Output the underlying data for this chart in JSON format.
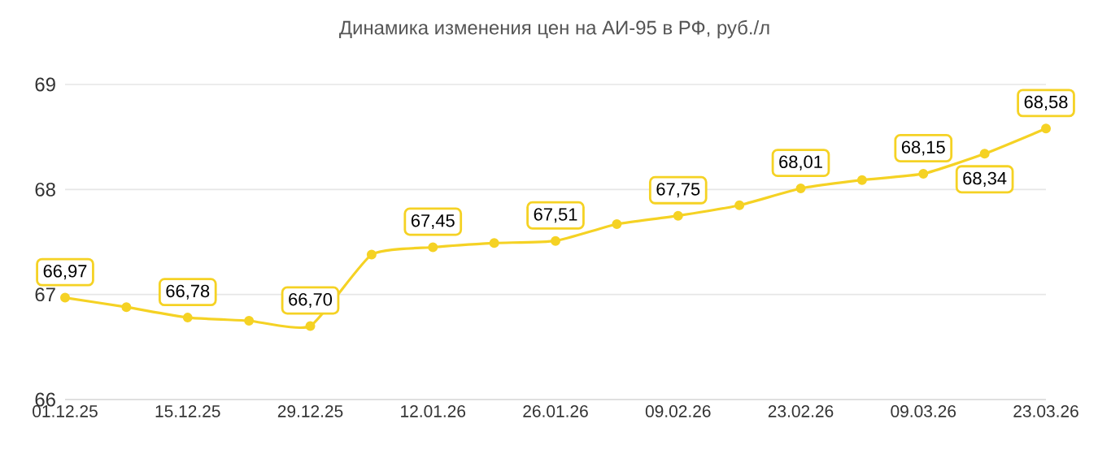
{
  "chart_data": {
    "type": "line",
    "title": "Динамика изменения цен на АИ-95 в РФ, руб./л",
    "categories": [
      "01.12.25",
      null,
      "15.12.25",
      null,
      "29.12.25",
      null,
      "12.01.26",
      null,
      "26.01.26",
      null,
      "09.02.26",
      null,
      "23.02.26",
      null,
      "09.03.26",
      null,
      "23.03.26"
    ],
    "series": [
      {
        "color": "#f5d224",
        "values": [
          66.97,
          66.88,
          66.78,
          66.75,
          66.7,
          67.38,
          67.45,
          67.49,
          67.51,
          67.67,
          67.75,
          67.85,
          68.01,
          68.09,
          68.15,
          68.34,
          68.58
        ],
        "value_labels": [
          "66,97",
          null,
          "66,78",
          null,
          "66,70",
          null,
          "67,45",
          null,
          "67,51",
          null,
          "67,75",
          null,
          "68,01",
          null,
          "68,15",
          "68,34",
          "68,58"
        ]
      }
    ],
    "ylim": [
      66,
      69
    ],
    "yticks": [
      66,
      67,
      68,
      69
    ],
    "grid": "y",
    "marker": "circle",
    "line_style": "solid"
  }
}
